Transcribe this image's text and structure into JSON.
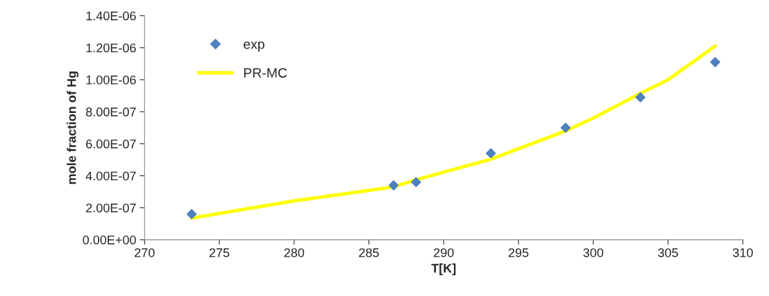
{
  "chart_data": {
    "type": "scatter",
    "xlabel": "T[K]",
    "ylabel": "mole fraction of Hg",
    "series": [
      {
        "name": "exp",
        "marker": "diamond",
        "color": "#4f81bd",
        "x": [
          273.15,
          286.65,
          288.15,
          293.15,
          298.15,
          303.15,
          308.15
        ],
        "values": [
          1.6e-07,
          3.4e-07,
          3.6e-07,
          5.4e-07,
          7e-07,
          8.9e-07,
          1.11e-06
        ]
      },
      {
        "name": "PR-MC",
        "type": "line",
        "marker": "none",
        "line_style": "solid",
        "color": "#ffff00",
        "x": [
          273.15,
          280,
          286.65,
          288.15,
          293.15,
          298.15,
          300,
          303.15,
          305,
          308.15
        ],
        "values": [
          1.35e-07,
          2.43e-07,
          3.3e-07,
          3.75e-07,
          5.03e-07,
          6.8e-07,
          7.6e-07,
          9.15e-07,
          1e-06,
          1.21e-06
        ]
      }
    ],
    "xlim": [
      270,
      310
    ],
    "xticks": [
      270,
      275,
      280,
      285,
      290,
      295,
      300,
      305,
      310
    ],
    "ylim": [
      0,
      1.4e-06
    ],
    "yticks": [
      {
        "value": 0,
        "label": "0.00E+00"
      },
      {
        "value": 2e-07,
        "label": "2.00E-07"
      },
      {
        "value": 4e-07,
        "label": "4.00E-07"
      },
      {
        "value": 6e-07,
        "label": "6.00E-07"
      },
      {
        "value": 8e-07,
        "label": "8.00E-07"
      },
      {
        "value": 1e-06,
        "label": "1.00E-06"
      },
      {
        "value": 1.2e-06,
        "label": "1.20E-06"
      },
      {
        "value": 1.4e-06,
        "label": "1.40E-06"
      }
    ],
    "grid": false,
    "legend": "top left"
  }
}
